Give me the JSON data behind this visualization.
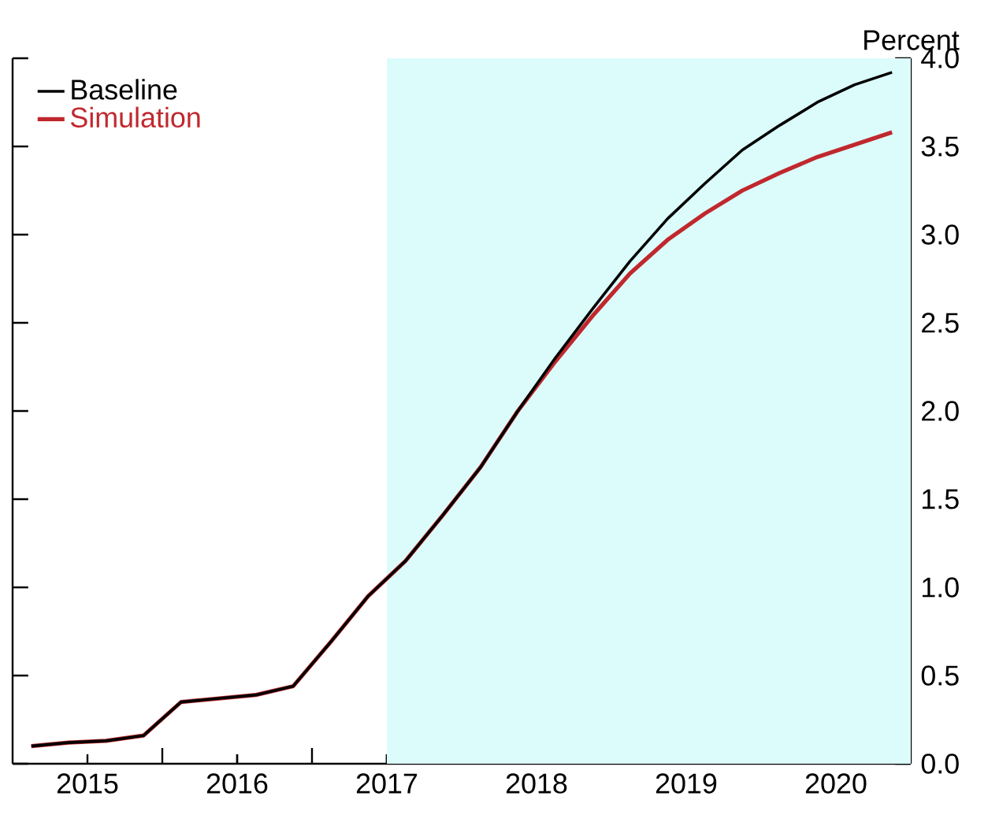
{
  "chart_data": {
    "type": "line",
    "ylabel": "Percent",
    "x": [
      2015.125,
      2015.375,
      2015.625,
      2015.875,
      2016.125,
      2016.375,
      2016.625,
      2016.875,
      2017.125,
      2017.375,
      2017.625,
      2017.875,
      2018.125,
      2018.375,
      2018.625,
      2018.875,
      2019.125,
      2019.375,
      2019.625,
      2019.875,
      2020.125,
      2020.375,
      2020.625,
      2020.875
    ],
    "series": [
      {
        "name": "Baseline",
        "color": "#000000",
        "values": [
          0.1,
          0.12,
          0.13,
          0.16,
          0.35,
          0.37,
          0.39,
          0.44,
          0.69,
          0.95,
          1.15,
          1.41,
          1.68,
          2.0,
          2.3,
          2.58,
          2.85,
          3.09,
          3.29,
          3.48,
          3.62,
          3.75,
          3.85,
          3.92
        ]
      },
      {
        "name": "Simulation",
        "color": "#c0282d",
        "values": [
          0.1,
          0.12,
          0.13,
          0.16,
          0.35,
          0.37,
          0.39,
          0.44,
          0.69,
          0.95,
          1.15,
          1.41,
          1.68,
          2.0,
          2.28,
          2.54,
          2.78,
          2.97,
          3.12,
          3.25,
          3.35,
          3.44,
          3.51,
          3.58
        ]
      }
    ],
    "xlim": [
      2015,
      2021
    ],
    "xticks": [
      {
        "value": 2015.5,
        "label": "2015"
      },
      {
        "value": 2016,
        "label": null
      },
      {
        "value": 2016.5,
        "label": "2016"
      },
      {
        "value": 2017,
        "label": null
      },
      {
        "value": 2017.5,
        "label": "2017"
      },
      {
        "value": 2018,
        "label": null
      },
      {
        "value": 2018.5,
        "label": "2018"
      },
      {
        "value": 2019,
        "label": null
      },
      {
        "value": 2019.5,
        "label": "2019"
      },
      {
        "value": 2020,
        "label": null
      },
      {
        "value": 2020.5,
        "label": "2020"
      }
    ],
    "ylim": [
      0,
      4
    ],
    "yticks": [
      {
        "value": 0,
        "label": "0.0"
      },
      0.5,
      {
        "value": 1,
        "label": "1.0"
      },
      1.5,
      {
        "value": 2,
        "label": "2.0"
      },
      2.5,
      {
        "value": 3,
        "label": "3.0"
      },
      3.5,
      {
        "value": 4,
        "label": "4.0"
      }
    ],
    "bands": [
      {
        "axis": "x",
        "from": 2017.5,
        "to": 2021,
        "color": "#dcfcfc"
      }
    ],
    "legend": "top left",
    "grid": false,
    "line_style": "solid",
    "marker": "none"
  }
}
